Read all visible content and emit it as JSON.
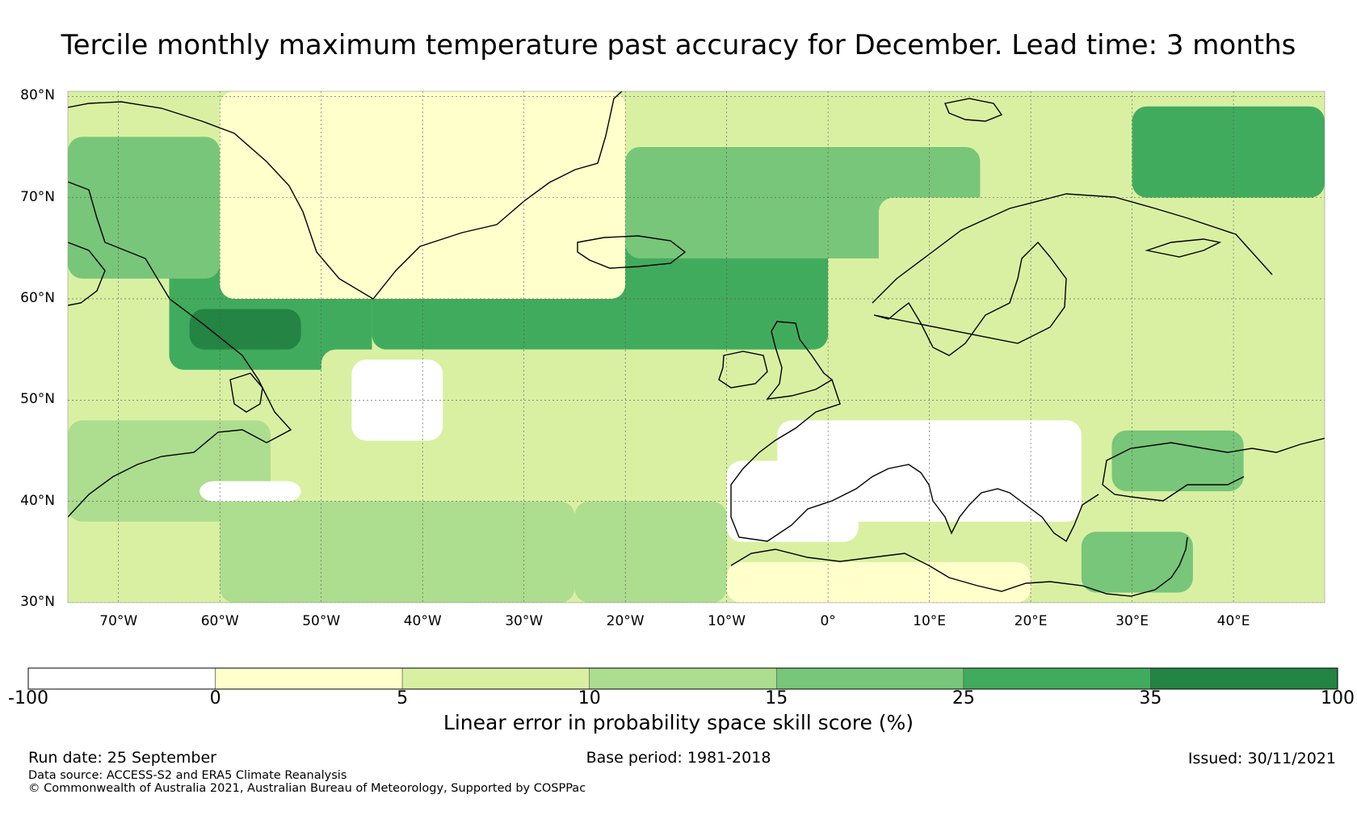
{
  "title": "Tercile monthly maximum temperature past accuracy for December. Lead time: 3 months",
  "map": {
    "lat_range": [
      30,
      80.5
    ],
    "lon_range": [
      -75,
      49
    ],
    "lat_ticks": [
      {
        "value": 80,
        "label": "80°N"
      },
      {
        "value": 70,
        "label": "70°N"
      },
      {
        "value": 60,
        "label": "60°N"
      },
      {
        "value": 50,
        "label": "50°N"
      },
      {
        "value": 40,
        "label": "40°N"
      },
      {
        "value": 30,
        "label": "30°N"
      }
    ],
    "lon_ticks": [
      {
        "value": -70,
        "label": "70°W"
      },
      {
        "value": -60,
        "label": "60°W"
      },
      {
        "value": -50,
        "label": "50°W"
      },
      {
        "value": -40,
        "label": "40°W"
      },
      {
        "value": -30,
        "label": "30°W"
      },
      {
        "value": -20,
        "label": "20°W"
      },
      {
        "value": -10,
        "label": "10°W"
      },
      {
        "value": 0,
        "label": "0°"
      },
      {
        "value": 10,
        "label": "10°E"
      },
      {
        "value": 20,
        "label": "20°E"
      },
      {
        "value": 30,
        "label": "30°E"
      },
      {
        "value": 40,
        "label": "40°E"
      }
    ],
    "skill_regions": [
      {
        "name": "north-atlantic-core",
        "lon": [
          -45,
          0
        ],
        "lat": [
          55,
          68
        ],
        "level": 5
      },
      {
        "name": "labrador-sea",
        "lon": [
          -65,
          -45
        ],
        "lat": [
          53,
          64
        ],
        "level": 5
      },
      {
        "name": "newfoundland-core",
        "lon": [
          -63,
          -52
        ],
        "lat": [
          55,
          59
        ],
        "level": 6
      },
      {
        "name": "norwegian-sea",
        "lon": [
          -20,
          15
        ],
        "lat": [
          64,
          75
        ],
        "level": 4
      },
      {
        "name": "barents-sea",
        "lon": [
          30,
          49
        ],
        "lat": [
          70,
          79
        ],
        "level": 5
      },
      {
        "name": "baffin-west",
        "lon": [
          -75,
          -60
        ],
        "lat": [
          62,
          76
        ],
        "level": 4
      },
      {
        "name": "greenland-interior",
        "lon": [
          -60,
          -20
        ],
        "lat": [
          60,
          80.5
        ],
        "level": 1
      },
      {
        "name": "scandinavia",
        "lon": [
          5,
          30
        ],
        "lat": [
          56,
          70
        ],
        "level": 2
      },
      {
        "name": "western-russia",
        "lon": [
          30,
          49
        ],
        "lat": [
          50,
          68
        ],
        "level": 2
      },
      {
        "name": "mid-atlantic",
        "lon": [
          -50,
          -10
        ],
        "lat": [
          40,
          55
        ],
        "level": 2
      },
      {
        "name": "atlantic-ne-coast-usa",
        "lon": [
          -75,
          -55
        ],
        "lat": [
          38,
          48
        ],
        "level": 3
      },
      {
        "name": "atlantic-subtropics",
        "lon": [
          -60,
          -25
        ],
        "lat": [
          30,
          40
        ],
        "level": 3
      },
      {
        "name": "canary-basin",
        "lon": [
          -25,
          -10
        ],
        "lat": [
          30,
          40
        ],
        "level": 3
      },
      {
        "name": "atlantic-hole",
        "lon": [
          -47,
          -38
        ],
        "lat": [
          46,
          54
        ],
        "level": 0
      },
      {
        "name": "sargasso-hole",
        "lon": [
          -62,
          -52
        ],
        "lat": [
          40,
          42
        ],
        "level": 0
      },
      {
        "name": "mediterranean-central",
        "lon": [
          -5,
          25
        ],
        "lat": [
          38,
          48
        ],
        "level": 0
      },
      {
        "name": "iberia",
        "lon": [
          -10,
          3
        ],
        "lat": [
          36,
          44
        ],
        "level": 0
      },
      {
        "name": "black-sea",
        "lon": [
          28,
          41
        ],
        "lat": [
          41,
          47
        ],
        "level": 4
      },
      {
        "name": "levant",
        "lon": [
          25,
          36
        ],
        "lat": [
          31,
          37
        ],
        "level": 4
      },
      {
        "name": "north-africa",
        "lon": [
          -10,
          20
        ],
        "lat": [
          30,
          34
        ],
        "level": 1
      }
    ]
  },
  "colorbar": {
    "ticks": [
      "-100",
      "0",
      "5",
      "10",
      "15",
      "25",
      "35",
      "100"
    ],
    "colors": [
      "#ffffff",
      "#ffffcc",
      "#d9f0a3",
      "#addd8e",
      "#78c679",
      "#41ab5d",
      "#238443"
    ],
    "label": "Linear error in probability space skill score (%)"
  },
  "footer": {
    "run_date": "Run date: 25 September",
    "base_period": "Base period: 1981-2018",
    "issued": "Issued: 30/11/2021",
    "data_source": "Data source: ACCESS-S2 and ERA5 Climate Reanalysis",
    "copyright": "© Commonwealth of Australia 2021, Australian Bureau of Meteorology, Supported by COSPPac"
  }
}
